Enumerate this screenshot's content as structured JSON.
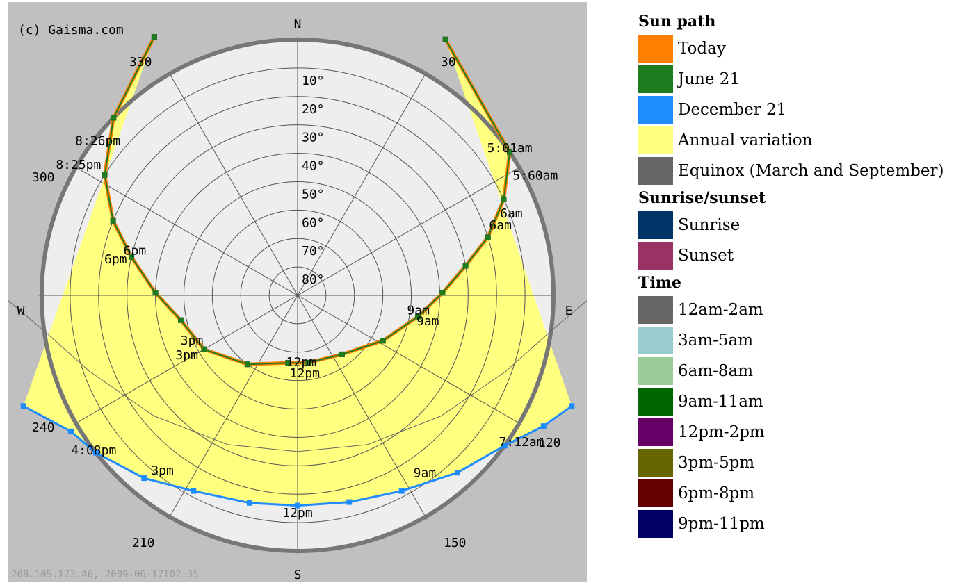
{
  "watermark": "(c) Gaisma.com",
  "footer": "208.105.173.46, 2009-06-17T02:35",
  "compass": {
    "n": "N",
    "s": "S",
    "e": "E",
    "w": "W"
  },
  "colors": {
    "today": "#ff8000",
    "june21": "#1e7b1e",
    "december21": "#1e8cff",
    "annual": "#ffff80",
    "equinox": "#666666",
    "sunrise": "#003366",
    "sunset": "#993366",
    "plot_bg": "#c0c0c0",
    "disc": "#eeeeee"
  },
  "chart_data": {
    "type": "polar sun path",
    "azimuth_labels": [
      "30",
      "120",
      "150",
      "210",
      "240",
      "300",
      "330"
    ],
    "altitude_labels": [
      "10°",
      "20°",
      "30°",
      "40°",
      "50°",
      "60°",
      "70°",
      "80°"
    ],
    "series": [
      {
        "name": "Today",
        "color": "#ff8000",
        "points": [
          [
            331,
            -14
          ],
          [
            314,
            0
          ],
          [
            302,
            10
          ],
          [
            292,
            20
          ],
          [
            283,
            30
          ],
          [
            271,
            40
          ],
          [
            258,
            48
          ],
          [
            240,
            52
          ],
          [
            216,
            60
          ],
          [
            188,
            66
          ],
          [
            171,
            66
          ],
          [
            143,
            64
          ],
          [
            118,
            56
          ],
          [
            100,
            47
          ],
          [
            89,
            39
          ],
          [
            80,
            30
          ],
          [
            73,
            20
          ],
          [
            65,
            10
          ],
          [
            56,
            0
          ],
          [
            30,
            -14
          ]
        ]
      },
      {
        "name": "June 21",
        "color": "#1e7b1e",
        "points": [
          [
            331,
            -14
          ],
          [
            314,
            0
          ],
          [
            302,
            10
          ],
          [
            292,
            20
          ],
          [
            283,
            30
          ],
          [
            271,
            40
          ],
          [
            258,
            48
          ],
          [
            240,
            52
          ],
          [
            216,
            60
          ],
          [
            188,
            66
          ],
          [
            171,
            66
          ],
          [
            143,
            64
          ],
          [
            118,
            56
          ],
          [
            100,
            47
          ],
          [
            89,
            39
          ],
          [
            80,
            30
          ],
          [
            73,
            20
          ],
          [
            65,
            10
          ],
          [
            56,
            0
          ],
          [
            30,
            -14
          ]
        ]
      },
      {
        "name": "December 21",
        "color": "#1e8cff",
        "points": [
          [
            248,
            -14
          ],
          [
            239,
            -3
          ],
          [
            232,
            0
          ],
          [
            220,
            6
          ],
          [
            208,
            12
          ],
          [
            193,
            15
          ],
          [
            180,
            16
          ],
          [
            166,
            15
          ],
          [
            152,
            12
          ],
          [
            138,
            6
          ],
          [
            126,
            0
          ],
          [
            118,
            -8
          ],
          [
            112,
            -14
          ]
        ]
      }
    ],
    "time_labels": [
      {
        "text": "5:01am",
        "az": 56,
        "alt": 0
      },
      {
        "text": "5:60am",
        "az": 64,
        "alt": -3
      },
      {
        "text": "6am",
        "az": 70,
        "alt": 10
      },
      {
        "text": "6am",
        "az": 72,
        "alt": 15
      },
      {
        "text": "9am",
        "az": 99,
        "alt": 47
      },
      {
        "text": "9am",
        "az": 103,
        "alt": 43
      },
      {
        "text": "12pm",
        "az": 177,
        "alt": 65
      },
      {
        "text": "12pm",
        "az": 175,
        "alt": 61
      },
      {
        "text": "3pm",
        "az": 245,
        "alt": 49
      },
      {
        "text": "3pm",
        "az": 240,
        "alt": 45
      },
      {
        "text": "6pm",
        "az": 284,
        "alt": 31
      },
      {
        "text": "6pm",
        "az": 280,
        "alt": 25
      },
      {
        "text": "8:26pm",
        "az": 307,
        "alt": 2
      },
      {
        "text": "8:25pm",
        "az": 300,
        "alt": 1
      },
      {
        "text": "7:12am",
        "az": 124,
        "alt": -5
      },
      {
        "text": "9am",
        "az": 145,
        "alt": 12
      },
      {
        "text": "12pm",
        "az": 180,
        "alt": 12
      },
      {
        "text": "3pm",
        "az": 217,
        "alt": 11
      },
      {
        "text": "4:08pm",
        "az": 232,
        "alt": -1
      }
    ]
  },
  "legend": {
    "sections": [
      {
        "title": "Sun path",
        "items": [
          {
            "label": "Today",
            "color": "#ff8000"
          },
          {
            "label": "June 21",
            "color": "#1e7b1e"
          },
          {
            "label": "December 21",
            "color": "#1e8cff"
          },
          {
            "label": "Annual variation",
            "color": "#ffff80"
          },
          {
            "label": "Equinox (March and September)",
            "color": "#666666"
          }
        ]
      },
      {
        "title": "Sunrise/sunset",
        "items": [
          {
            "label": "Sunrise",
            "color": "#003366"
          },
          {
            "label": "Sunset",
            "color": "#993366"
          }
        ]
      },
      {
        "title": "Time",
        "items": [
          {
            "label": "12am-2am",
            "color": "#666666"
          },
          {
            "label": "3am-5am",
            "color": "#99cccc"
          },
          {
            "label": "6am-8am",
            "color": "#99cc99"
          },
          {
            "label": "9am-11am",
            "color": "#006600"
          },
          {
            "label": "12pm-2pm",
            "color": "#660066"
          },
          {
            "label": "3pm-5pm",
            "color": "#666600"
          },
          {
            "label": "6pm-8pm",
            "color": "#660000"
          },
          {
            "label": "9pm-11pm",
            "color": "#000066"
          }
        ]
      }
    ]
  }
}
